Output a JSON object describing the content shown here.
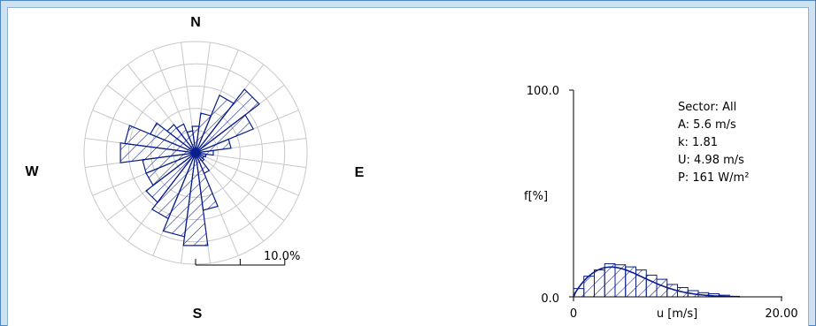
{
  "colors": {
    "bar_stroke": "#0a1e8c",
    "bar_hatch": "#0a1e8c",
    "grid": "#c8c8c8",
    "frame": "#4d88c4",
    "background": "#cfe0f0"
  },
  "rose": {
    "compass": {
      "n": "N",
      "e": "E",
      "s": "S",
      "w": "W"
    },
    "scale_label": "10.0%"
  },
  "histogram": {
    "ylabel": "f[%]",
    "y_max_label": "100.0",
    "y_min_label": "0.0",
    "xlabel": "u [m/s]",
    "x_min_label": "0",
    "x_max_label": "20.00",
    "stats": {
      "sector": "Sector: All",
      "a": "A: 5.6 m/s",
      "k": "k: 1.81",
      "u": "U: 4.98 m/s",
      "p": "P: 161 W/m²"
    }
  },
  "chart_data": [
    {
      "type": "rose",
      "title": "",
      "sectors": 24,
      "sector_width_deg": 15,
      "max_radius_percent": 12.5,
      "rings_percent": [
        2.5,
        5,
        7.5,
        10,
        12.5
      ],
      "frequency_percent_by_direction": [
        {
          "direction_deg": 0,
          "value": 3.0
        },
        {
          "direction_deg": 15,
          "value": 4.5
        },
        {
          "direction_deg": 30,
          "value": 7.0
        },
        {
          "direction_deg": 45,
          "value": 9.0
        },
        {
          "direction_deg": 60,
          "value": 7.0
        },
        {
          "direction_deg": 75,
          "value": 4.0
        },
        {
          "direction_deg": 90,
          "value": 2.0
        },
        {
          "direction_deg": 105,
          "value": 1.2
        },
        {
          "direction_deg": 120,
          "value": 1.0
        },
        {
          "direction_deg": 135,
          "value": 1.2
        },
        {
          "direction_deg": 150,
          "value": 2.5
        },
        {
          "direction_deg": 165,
          "value": 6.5
        },
        {
          "direction_deg": 180,
          "value": 10.5
        },
        {
          "direction_deg": 195,
          "value": 9.5
        },
        {
          "direction_deg": 210,
          "value": 8.0
        },
        {
          "direction_deg": 225,
          "value": 7.0
        },
        {
          "direction_deg": 240,
          "value": 6.0
        },
        {
          "direction_deg": 255,
          "value": 6.0
        },
        {
          "direction_deg": 270,
          "value": 8.5
        },
        {
          "direction_deg": 285,
          "value": 8.0
        },
        {
          "direction_deg": 300,
          "value": 5.5
        },
        {
          "direction_deg": 315,
          "value": 4.0
        },
        {
          "direction_deg": 330,
          "value": 3.5
        },
        {
          "direction_deg": 345,
          "value": 2.5
        }
      ]
    },
    {
      "type": "bar",
      "title": "Sector: All",
      "xlabel": "u [m/s]",
      "ylabel": "f[%]",
      "xlim": [
        0,
        20
      ],
      "ylim": [
        0,
        100
      ],
      "bin_width": 1,
      "x": [
        0.5,
        1.5,
        2.5,
        3.5,
        4.5,
        5.5,
        6.5,
        7.5,
        8.5,
        9.5,
        10.5,
        11.5,
        12.5,
        13.5,
        14.5
      ],
      "values": [
        4,
        10,
        13,
        16,
        15.5,
        14.5,
        13,
        10.5,
        8.5,
        6,
        4.5,
        3,
        2,
        1.5,
        0.8
      ],
      "weibull": {
        "A": 5.6,
        "k": 1.81,
        "U": 4.98,
        "P": 161
      }
    }
  ]
}
